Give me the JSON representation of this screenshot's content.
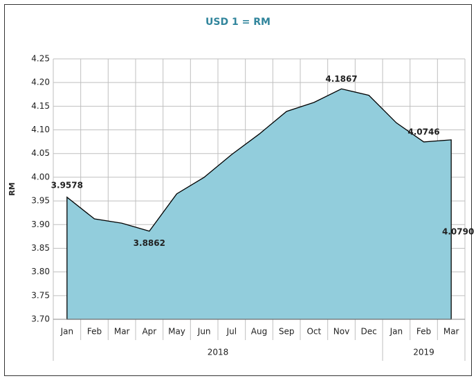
{
  "chart_data": {
    "type": "area",
    "title": "USD 1 = RM",
    "y_label": "RM",
    "categories": [
      "Jan",
      "Feb",
      "Mar",
      "Apr",
      "May",
      "Jun",
      "Jul",
      "Aug",
      "Sep",
      "Oct",
      "Nov",
      "Dec",
      "Jan",
      "Feb",
      "Mar"
    ],
    "groups": [
      {
        "label": "2018",
        "span": 12
      },
      {
        "label": "2019",
        "span": 3
      }
    ],
    "values": [
      3.9578,
      3.912,
      3.903,
      3.8862,
      3.965,
      4.0,
      4.048,
      4.091,
      4.139,
      4.158,
      4.1867,
      4.173,
      4.115,
      4.0746,
      4.079
    ],
    "value_labels": [
      "3.9578",
      null,
      null,
      "3.8862",
      null,
      null,
      null,
      null,
      null,
      null,
      "4.1867",
      null,
      null,
      "4.0746",
      "4.0790"
    ],
    "color": "#92cddc",
    "ylim": [
      3.7,
      4.25
    ],
    "yticks": [
      {
        "value": 3.7,
        "label": "3.70"
      },
      3.75,
      {
        "value": 3.8,
        "label": "3.80"
      },
      3.85,
      {
        "value": 3.9,
        "label": "3.90"
      },
      3.95,
      {
        "value": 4.0,
        "label": "4.00"
      },
      4.05,
      {
        "value": 4.1,
        "label": "4.10"
      },
      4.15,
      {
        "value": 4.2,
        "label": "4.20"
      },
      4.25
    ],
    "grid": true
  }
}
